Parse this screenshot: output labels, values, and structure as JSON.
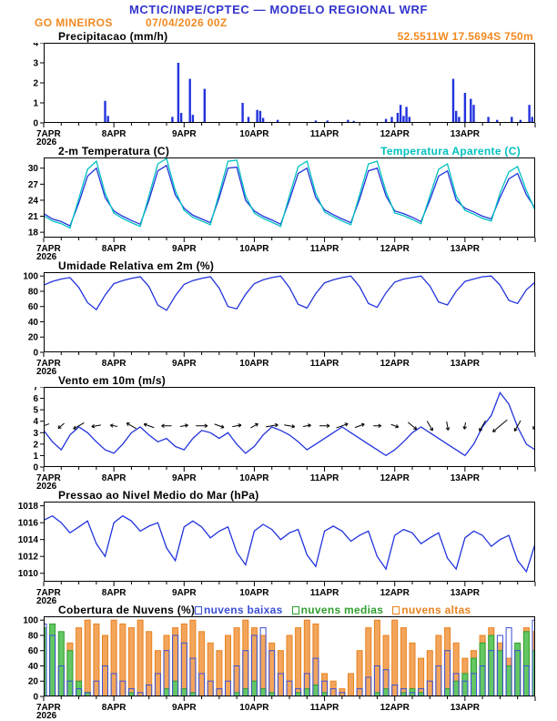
{
  "header": {
    "title": "MCTIC/INPE/CPTEC — MODELO REGIONAL WRF",
    "station": "GO MINEIROS",
    "run": "07/04/2026 00Z",
    "coords": "52.5511W 17.5694S 750m"
  },
  "colors": {
    "title_blue": "#3333cc",
    "orange": "#f28a22",
    "line_blue": "#2233dd",
    "cyan": "#00c0c0",
    "cloud_low_blue": "#3a4fd6",
    "cloud_mid_green": "#2f9e2f",
    "cloud_high_orange": "#e8821e"
  },
  "x_axis": {
    "days": [
      "7APR",
      "8APR",
      "9APR",
      "10APR",
      "11APR",
      "12APR",
      "13APR"
    ],
    "year": "2026",
    "hours_total": 168
  },
  "chart_data": [
    {
      "type": "bar",
      "title": "Precipitacao (mm/h)",
      "ylabel": "mm/h",
      "ylim": [
        0,
        4
      ],
      "yticks": [
        0,
        1,
        2,
        3,
        4
      ],
      "bar_color": "#2233dd",
      "points": [
        [
          21,
          1.1
        ],
        [
          22,
          0.35
        ],
        [
          44,
          0.3
        ],
        [
          46,
          3.0
        ],
        [
          47,
          0.5
        ],
        [
          50,
          2.2
        ],
        [
          51,
          0.4
        ],
        [
          55,
          1.7
        ],
        [
          68,
          1.0
        ],
        [
          70,
          0.3
        ],
        [
          73,
          0.65
        ],
        [
          74,
          0.6
        ],
        [
          75,
          0.25
        ],
        [
          80,
          0.15
        ],
        [
          93,
          0.12
        ],
        [
          97,
          0.12
        ],
        [
          104,
          0.15
        ],
        [
          106,
          0.1
        ],
        [
          117,
          0.2
        ],
        [
          119,
          0.3
        ],
        [
          121,
          0.5
        ],
        [
          122,
          0.9
        ],
        [
          123,
          0.35
        ],
        [
          124,
          0.8
        ],
        [
          125,
          0.3
        ],
        [
          140,
          2.2
        ],
        [
          141,
          0.6
        ],
        [
          142,
          0.3
        ],
        [
          144,
          1.5
        ],
        [
          146,
          1.2
        ],
        [
          147,
          0.9
        ],
        [
          152,
          0.3
        ],
        [
          155,
          0.15
        ],
        [
          160,
          0.3
        ],
        [
          163,
          0.15
        ],
        [
          166,
          0.9
        ],
        [
          167,
          0.3
        ]
      ]
    },
    {
      "type": "line",
      "title": "2-m Temperatura (C)",
      "legend": "Temperatura Aparente (C)",
      "ylim": [
        17,
        32
      ],
      "yticks": [
        18,
        21,
        24,
        27,
        30
      ],
      "step_hours": 3,
      "series": [
        {
          "name": "2-m Temperatura (C)",
          "color": "#2233dd",
          "values": [
            21.5,
            20.5,
            20.0,
            19.2,
            23.5,
            28.5,
            30.0,
            24.5,
            22.0,
            21.0,
            20.2,
            19.5,
            24.0,
            29.5,
            30.5,
            25.0,
            22.5,
            21.2,
            20.5,
            19.8,
            24.5,
            30.0,
            30.2,
            24.0,
            22.0,
            21.0,
            20.3,
            19.5,
            24.0,
            29.0,
            30.0,
            24.5,
            22.2,
            21.3,
            20.5,
            19.8,
            24.2,
            29.5,
            30.0,
            24.8,
            22.0,
            21.5,
            20.8,
            20.0,
            24.0,
            28.5,
            29.5,
            24.0,
            22.5,
            21.8,
            21.0,
            20.5,
            24.5,
            28.0,
            29.0,
            25.0,
            22.5
          ]
        },
        {
          "name": "Temperatura Aparente (C)",
          "color": "#00c0c0",
          "values": [
            21.1,
            20.1,
            19.6,
            18.8,
            24.3,
            29.8,
            31.3,
            25.3,
            21.6,
            20.6,
            19.8,
            19.1,
            24.8,
            30.8,
            31.8,
            25.8,
            22.1,
            20.8,
            20.1,
            19.4,
            25.3,
            31.3,
            31.5,
            24.8,
            21.6,
            20.6,
            19.9,
            19.1,
            24.8,
            30.3,
            31.3,
            25.3,
            21.8,
            20.9,
            20.1,
            19.4,
            25.0,
            30.8,
            31.3,
            25.6,
            21.6,
            21.1,
            20.4,
            19.6,
            24.8,
            29.8,
            30.8,
            24.8,
            22.1,
            21.4,
            20.6,
            20.1,
            25.3,
            29.3,
            30.3,
            25.8,
            22.1
          ]
        }
      ]
    },
    {
      "type": "line",
      "title": "Umidade Relativa em 2m (%)",
      "ylim": [
        0,
        105
      ],
      "yticks": [
        0,
        20,
        40,
        60,
        80,
        100
      ],
      "step_hours": 3,
      "series": [
        {
          "name": "Umidade Relativa em 2m (%)",
          "color": "#2233dd",
          "values": [
            88,
            93,
            96,
            98,
            85,
            65,
            56,
            75,
            90,
            94,
            97,
            99,
            86,
            62,
            55,
            74,
            89,
            94,
            97,
            99,
            84,
            60,
            57,
            76,
            90,
            95,
            98,
            100,
            85,
            63,
            58,
            77,
            91,
            95,
            98,
            100,
            86,
            64,
            59,
            78,
            92,
            96,
            98,
            100,
            87,
            66,
            62,
            80,
            93,
            96,
            99,
            100,
            88,
            68,
            64,
            82,
            92
          ]
        }
      ]
    },
    {
      "type": "wind",
      "title": "Vento em 10m (m/s)",
      "ylim": [
        0,
        7
      ],
      "yticks": [
        0,
        1,
        2,
        3,
        4,
        5,
        6,
        7
      ],
      "step_hours": 3,
      "arrow_y": 3.6,
      "arrow_step_hours": 6,
      "arrow_dirs_deg": [
        200,
        220,
        210,
        190,
        170,
        150,
        160,
        180,
        10,
        0,
        340,
        10,
        30,
        10,
        350,
        10,
        0,
        20,
        20,
        0,
        340,
        320,
        300,
        280,
        260,
        240,
        220,
        240,
        240
      ],
      "series": [
        {
          "name": "Vento em 10m (m/s)",
          "color": "#2233dd",
          "values": [
            3.2,
            2.2,
            1.5,
            2.8,
            3.5,
            3.0,
            2.2,
            1.5,
            1.2,
            2.0,
            3.0,
            3.5,
            2.8,
            2.2,
            2.5,
            1.8,
            1.5,
            2.5,
            3.2,
            3.0,
            2.5,
            3.0,
            2.0,
            1.2,
            1.8,
            2.8,
            3.5,
            3.2,
            2.8,
            2.2,
            1.5,
            2.0,
            2.5,
            3.0,
            3.5,
            3.0,
            2.5,
            2.0,
            1.5,
            1.0,
            1.5,
            2.2,
            3.0,
            3.5,
            3.0,
            2.5,
            2.0,
            1.5,
            1.0,
            2.0,
            3.5,
            4.5,
            6.5,
            5.5,
            3.5,
            2.0,
            1.5
          ]
        }
      ]
    },
    {
      "type": "line",
      "title": "Pressao ao Nivel Medio do Mar (hPa)",
      "ylim": [
        1009,
        1018.5
      ],
      "yticks": [
        1010,
        1012,
        1014,
        1016,
        1018
      ],
      "step_hours": 3,
      "series": [
        {
          "name": "Pressao ao Nivel Medio do Mar (hPa)",
          "color": "#2233dd",
          "values": [
            1016.3,
            1016.8,
            1016.0,
            1014.8,
            1015.5,
            1016.2,
            1013.5,
            1012.0,
            1016.0,
            1016.8,
            1016.2,
            1015.0,
            1015.6,
            1016.0,
            1013.0,
            1011.5,
            1015.5,
            1016.2,
            1015.5,
            1014.2,
            1015.0,
            1015.5,
            1012.5,
            1011.0,
            1015.0,
            1015.8,
            1015.2,
            1014.0,
            1014.8,
            1015.2,
            1012.2,
            1010.8,
            1015.0,
            1015.6,
            1015.0,
            1013.8,
            1014.5,
            1015.0,
            1012.0,
            1010.5,
            1014.5,
            1015.2,
            1014.8,
            1013.5,
            1014.2,
            1014.8,
            1011.8,
            1010.5,
            1014.2,
            1015.0,
            1014.5,
            1013.2,
            1014.0,
            1014.5,
            1011.5,
            1010.2,
            1013.5
          ]
        }
      ]
    },
    {
      "type": "cloud",
      "title": "Cobertura de Nuvens (%)",
      "ylim": [
        0,
        105
      ],
      "yticks": [
        0,
        20,
        40,
        60,
        80,
        100
      ],
      "step_hours": 3,
      "series": [
        {
          "name": "nuvens baixas",
          "color": "#3a4fd6",
          "fill": "none",
          "values": [
            95,
            80,
            40,
            20,
            10,
            5,
            20,
            40,
            30,
            20,
            10,
            5,
            15,
            30,
            60,
            80,
            70,
            50,
            30,
            20,
            10,
            20,
            40,
            60,
            80,
            90,
            60,
            30,
            20,
            10,
            30,
            50,
            20,
            10,
            5,
            0,
            10,
            25,
            40,
            35,
            15,
            10,
            5,
            10,
            20,
            40,
            60,
            30,
            20,
            30,
            40,
            60,
            80,
            90,
            60,
            40,
            100
          ]
        },
        {
          "name": "nuvens medias",
          "color": "#2f9e2f",
          "fill": "#63c763",
          "values": [
            90,
            95,
            85,
            60,
            20,
            5,
            0,
            0,
            0,
            0,
            5,
            0,
            0,
            0,
            10,
            20,
            10,
            5,
            0,
            0,
            0,
            0,
            5,
            10,
            20,
            10,
            5,
            0,
            0,
            5,
            10,
            15,
            5,
            0,
            0,
            0,
            0,
            0,
            5,
            10,
            0,
            5,
            10,
            5,
            0,
            0,
            10,
            20,
            30,
            50,
            70,
            80,
            60,
            40,
            70,
            85,
            60
          ]
        },
        {
          "name": "nuvens altas",
          "color": "#e8821e",
          "fill": "#f3a55c",
          "values": [
            10,
            20,
            40,
            70,
            90,
            100,
            95,
            80,
            100,
            95,
            90,
            100,
            85,
            60,
            80,
            90,
            95,
            100,
            85,
            70,
            60,
            80,
            90,
            100,
            90,
            80,
            70,
            60,
            80,
            90,
            100,
            95,
            30,
            20,
            10,
            30,
            60,
            90,
            100,
            80,
            100,
            90,
            70,
            50,
            60,
            80,
            90,
            70,
            50,
            60,
            80,
            90,
            70,
            50,
            60,
            90,
            85
          ]
        }
      ]
    }
  ]
}
